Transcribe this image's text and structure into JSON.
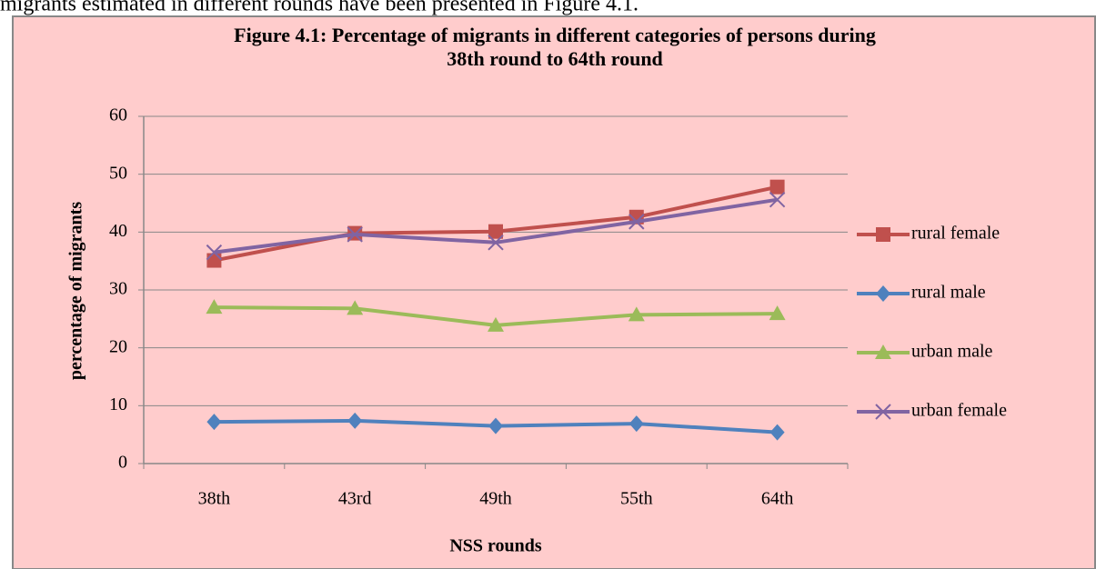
{
  "page": {
    "text": "migrants estimated in different rounds have been presented in Figure 4.1."
  },
  "chart_data": {
    "type": "line",
    "title": [
      "Figure 4.1: Percentage of migrants in different categories of persons during",
      "38th round to 64th round"
    ],
    "x_label": "NSS rounds",
    "y_label": "percentage of migrants",
    "categories": [
      "38th",
      "43rd",
      "49th",
      "55th",
      "64th"
    ],
    "series": [
      {
        "name": "rural female",
        "color": "#c0504d",
        "marker": "square",
        "values": [
          35.1,
          39.8,
          40.1,
          42.6,
          47.8
        ]
      },
      {
        "name": "rural male",
        "color": "#4f81bd",
        "marker": "diamond",
        "values": [
          7.2,
          7.4,
          6.5,
          6.9,
          5.4
        ]
      },
      {
        "name": "urban male",
        "color": "#9bbb59",
        "marker": "triangle",
        "values": [
          27.0,
          26.8,
          23.9,
          25.7,
          25.9
        ]
      },
      {
        "name": "urban female",
        "color": "#8064a2",
        "marker": "x",
        "values": [
          36.5,
          39.6,
          38.2,
          41.8,
          45.6
        ]
      }
    ],
    "ylim": [
      0,
      60
    ],
    "yticks": [
      0,
      10,
      20,
      30,
      40,
      50,
      60
    ],
    "grid": true,
    "legend": "right"
  }
}
